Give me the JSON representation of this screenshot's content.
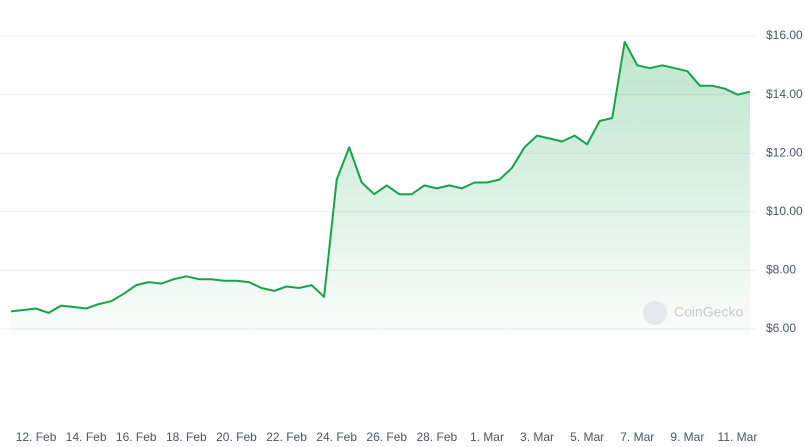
{
  "chart_data": {
    "type": "line",
    "watermark": "CoinGecko",
    "color": "#16a34a",
    "grid": true,
    "categories": [
      null,
      null,
      "12. Feb",
      null,
      null,
      null,
      "14. Feb",
      null,
      null,
      null,
      "16. Feb",
      null,
      null,
      null,
      "18. Feb",
      null,
      null,
      null,
      "20. Feb",
      null,
      null,
      null,
      "22. Feb",
      null,
      null,
      null,
      "24. Feb",
      null,
      null,
      null,
      "26. Feb",
      null,
      null,
      null,
      "28. Feb",
      null,
      null,
      null,
      "1. Mar",
      null,
      null,
      null,
      "3. Mar",
      null,
      null,
      null,
      "5. Mar",
      null,
      null,
      null,
      "7. Mar",
      null,
      null,
      null,
      "9. Mar",
      null,
      null,
      null,
      "11. Mar",
      null
    ],
    "values": [
      6.6,
      6.65,
      6.7,
      6.55,
      6.8,
      6.75,
      6.7,
      6.85,
      6.95,
      7.2,
      7.5,
      7.6,
      7.55,
      7.7,
      7.8,
      7.7,
      7.7,
      7.65,
      7.65,
      7.6,
      7.4,
      7.3,
      7.45,
      7.4,
      7.5,
      7.1,
      11.1,
      12.2,
      11.0,
      10.6,
      10.9,
      10.6,
      10.6,
      10.9,
      10.8,
      10.9,
      10.8,
      11.0,
      11.0,
      11.1,
      11.5,
      12.2,
      12.6,
      12.5,
      12.4,
      12.6,
      12.3,
      13.1,
      13.2,
      15.8,
      15.0,
      14.9,
      15.0,
      14.9,
      14.8,
      14.3,
      14.3,
      14.2,
      14.0,
      14.1
    ],
    "ylim": [
      6,
      16
    ],
    "yticks": [
      {
        "value": 6,
        "label": "$6.00"
      },
      {
        "value": 8,
        "label": "$8.00"
      },
      {
        "value": 10,
        "label": "$10.00"
      },
      {
        "value": 12,
        "label": "$12.00"
      },
      {
        "value": 14,
        "label": "$14.00"
      },
      {
        "value": 16,
        "label": "$16.00"
      }
    ]
  }
}
